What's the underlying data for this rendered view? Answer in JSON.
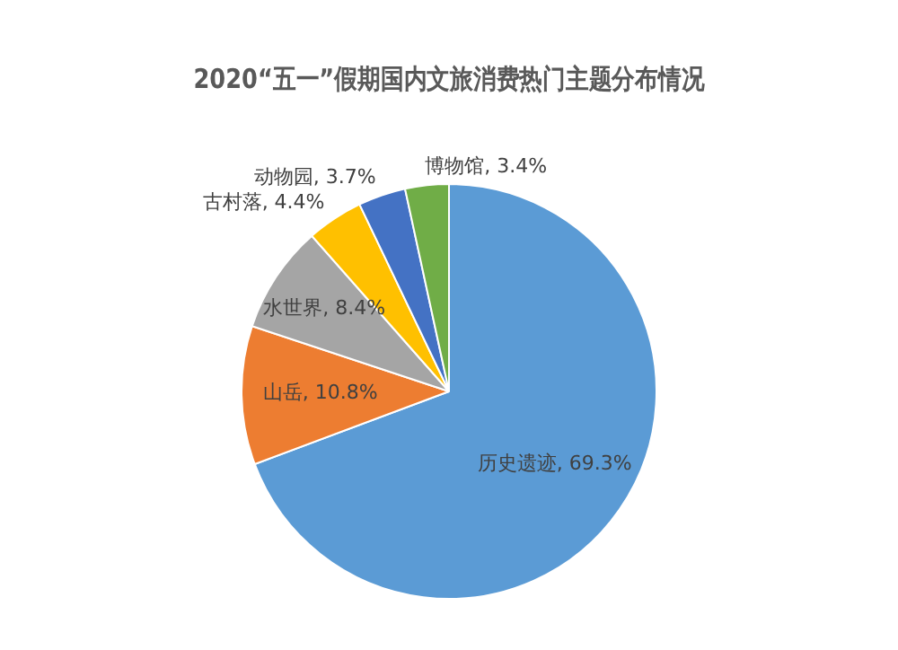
{
  "chart_data": {
    "type": "pie",
    "title": "2020“五一”假期国内文旅消费热门主题分布情况",
    "categories": [
      "历史遗迹",
      "山岳",
      "水世界",
      "古村落",
      "动物园",
      "博物馆"
    ],
    "values": [
      69.3,
      10.8,
      8.4,
      4.4,
      3.7,
      3.4
    ],
    "colors": [
      "#5b9bd5",
      "#ed7d31",
      "#a5a5a5",
      "#ffc000",
      "#4472c4",
      "#70ad47"
    ],
    "value_labels": [
      "69.3%",
      "10.8%",
      "8.4%",
      "4.4%",
      "3.7%",
      "3.4%"
    ],
    "legend": false
  }
}
